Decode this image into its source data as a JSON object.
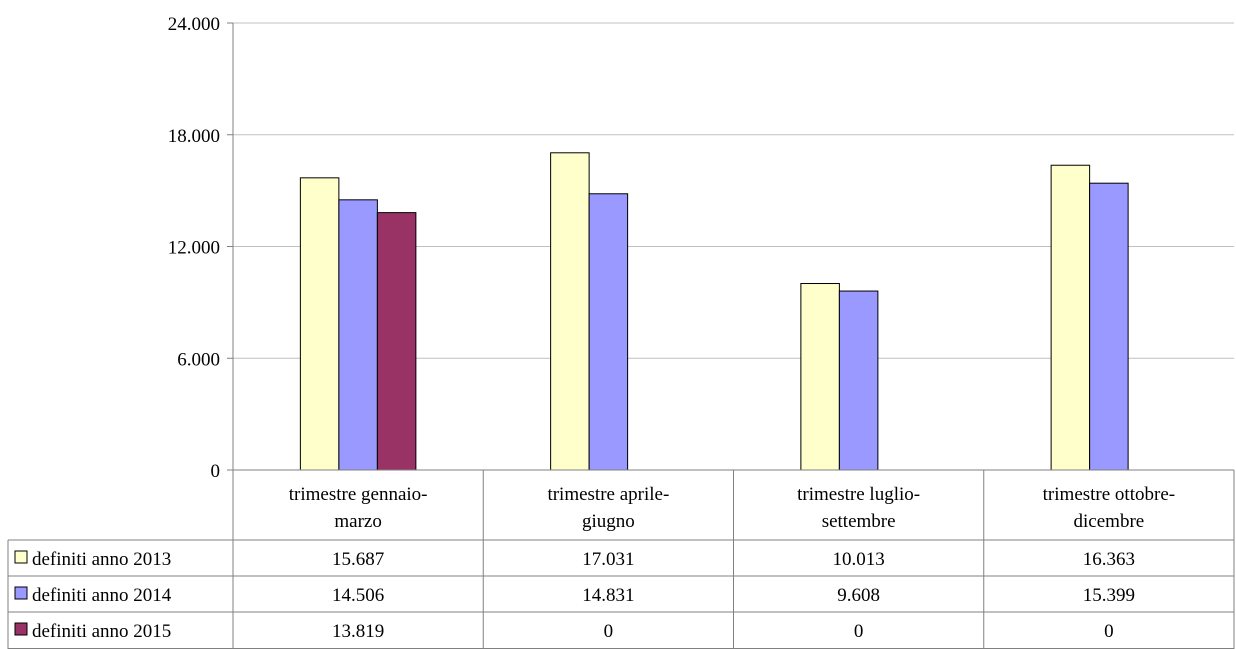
{
  "chart_data": {
    "type": "bar",
    "categories": [
      "trimestre gennaio-marzo",
      "trimestre aprile-giugno",
      "trimestre luglio-settembre",
      "trimestre ottobre-dicembre"
    ],
    "category_lines": [
      [
        "trimestre gennaio-",
        "marzo"
      ],
      [
        "trimestre aprile-",
        "giugno"
      ],
      [
        "trimestre luglio-",
        "settembre"
      ],
      [
        "trimestre ottobre-",
        "dicembre"
      ]
    ],
    "series": [
      {
        "name": "definiti anno 2013",
        "values": [
          15687,
          17031,
          10013,
          16363
        ],
        "labels": [
          "15.687",
          "17.031",
          "10.013",
          "16.363"
        ],
        "color": "#FFFFCC"
      },
      {
        "name": "definiti anno 2014",
        "values": [
          14506,
          14831,
          9608,
          15399
        ],
        "labels": [
          "14.506",
          "14.831",
          "9.608",
          "15.399"
        ],
        "color": "#9999FF"
      },
      {
        "name": "definiti anno 2015",
        "values": [
          13819,
          0,
          0,
          0
        ],
        "labels": [
          "13.819",
          "0",
          "0",
          "0"
        ],
        "color": "#993366"
      }
    ],
    "ylim": [
      0,
      24000
    ],
    "yticks": [
      0,
      6000,
      12000,
      18000,
      24000
    ],
    "ytick_labels": [
      "0",
      "6.000",
      "12.000",
      "18.000",
      "24.000"
    ],
    "grid": true,
    "data_table": true,
    "title": "",
    "xlabel": "",
    "ylabel": ""
  }
}
